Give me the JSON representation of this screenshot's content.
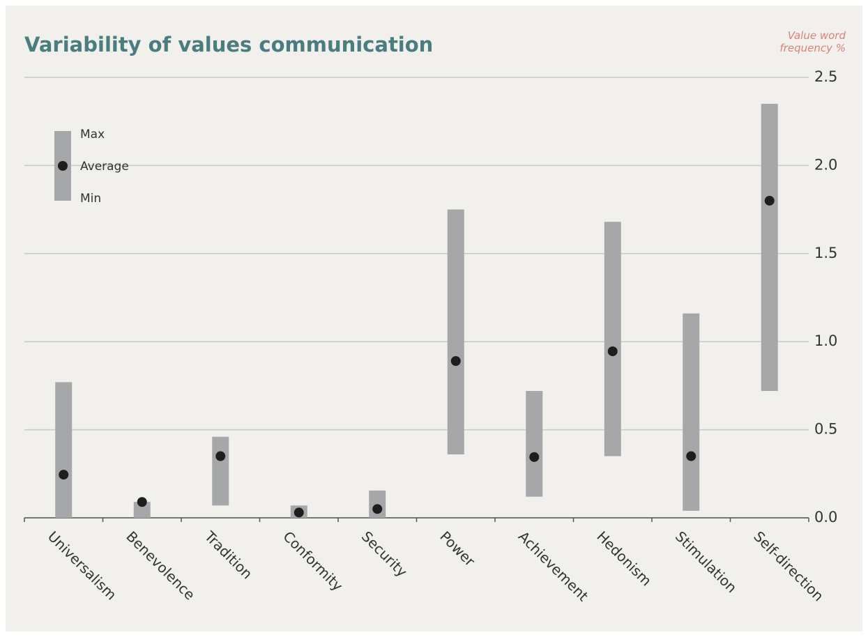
{
  "chart_data": {
    "type": "range",
    "title": "Variability of values communication",
    "y_axis_label": "Value word frequency %",
    "categories": [
      "Universalism",
      "Benevolence",
      "Tradition",
      "Conformity",
      "Security",
      "Power",
      "Achievement",
      "Hedonism",
      "Stimulation",
      "Self-direction"
    ],
    "series": [
      {
        "name": "Min",
        "color": "#a5a7a9",
        "values": [
          0,
          0,
          0.07,
          0,
          0,
          0.36,
          0.12,
          0.35,
          0.04,
          0.72
        ]
      },
      {
        "name": "Max",
        "color": "#a5a7a9",
        "values": [
          0.77,
          0.09,
          0.46,
          0.07,
          0.155,
          1.75,
          0.72,
          1.68,
          1.16,
          2.35
        ]
      },
      {
        "name": "Average",
        "color": "#1e1e1e",
        "values": [
          0.245,
          0.09,
          0.35,
          0.03,
          0.05,
          0.89,
          0.345,
          0.945,
          0.35,
          1.8
        ]
      }
    ],
    "ylim": [
      0,
      2.5
    ],
    "yticks": [
      {
        "value": 0,
        "label": "0.0"
      },
      0.5,
      {
        "value": 1,
        "label": "1.0"
      },
      1.5,
      {
        "value": 2,
        "label": "2.0"
      },
      2.5
    ],
    "grid": true
  }
}
